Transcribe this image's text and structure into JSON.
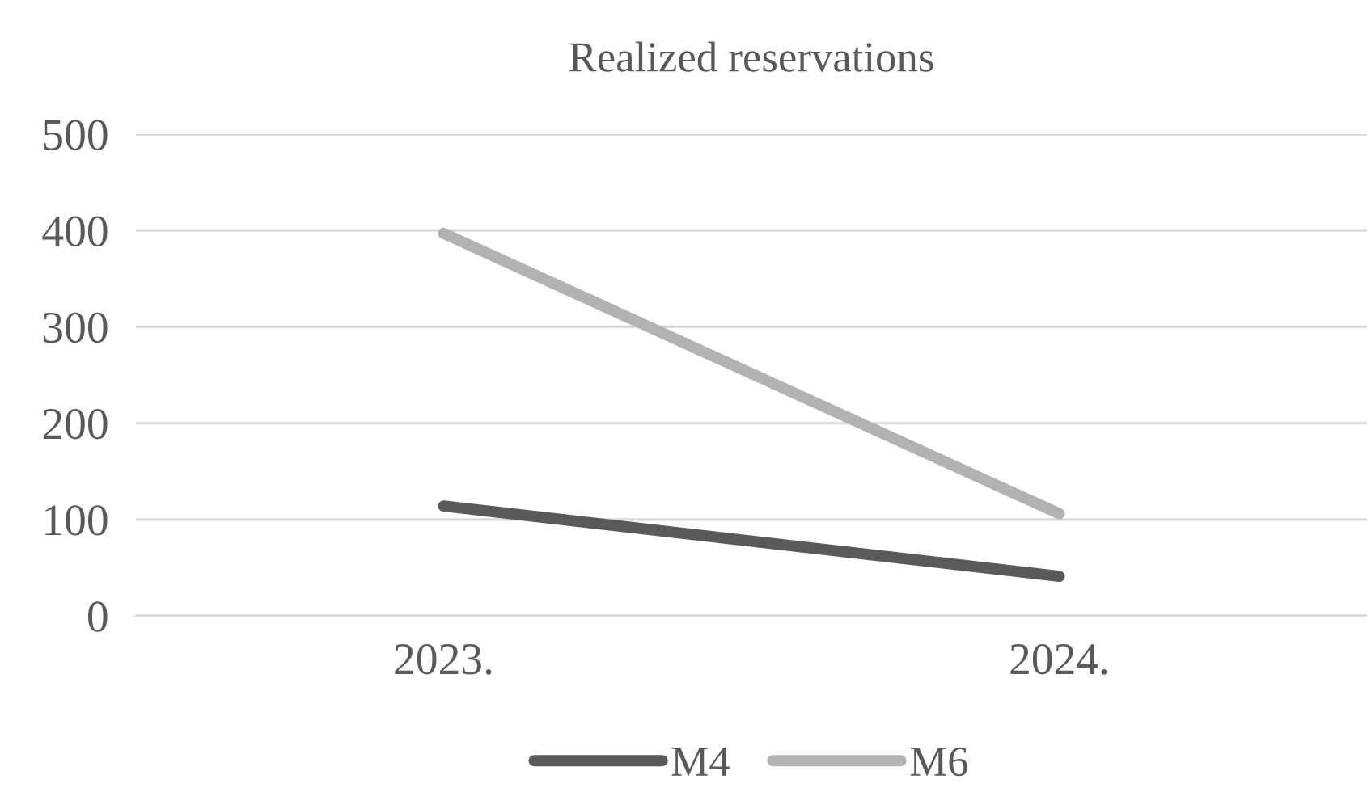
{
  "chart_data": {
    "type": "line",
    "title": "Realized reservations",
    "categories": [
      "2023.",
      "2024."
    ],
    "series": [
      {
        "name": "M4",
        "color": "#595959",
        "values": [
          114,
          41
        ]
      },
      {
        "name": "M6",
        "color": "#b2b2b2",
        "values": [
          397,
          106
        ]
      }
    ],
    "ylim": [
      0,
      500
    ],
    "yticks": [
      0,
      100,
      200,
      300,
      400,
      500
    ],
    "grid": "y",
    "legend": "bottom",
    "marker": "none",
    "line_style": "solid"
  }
}
